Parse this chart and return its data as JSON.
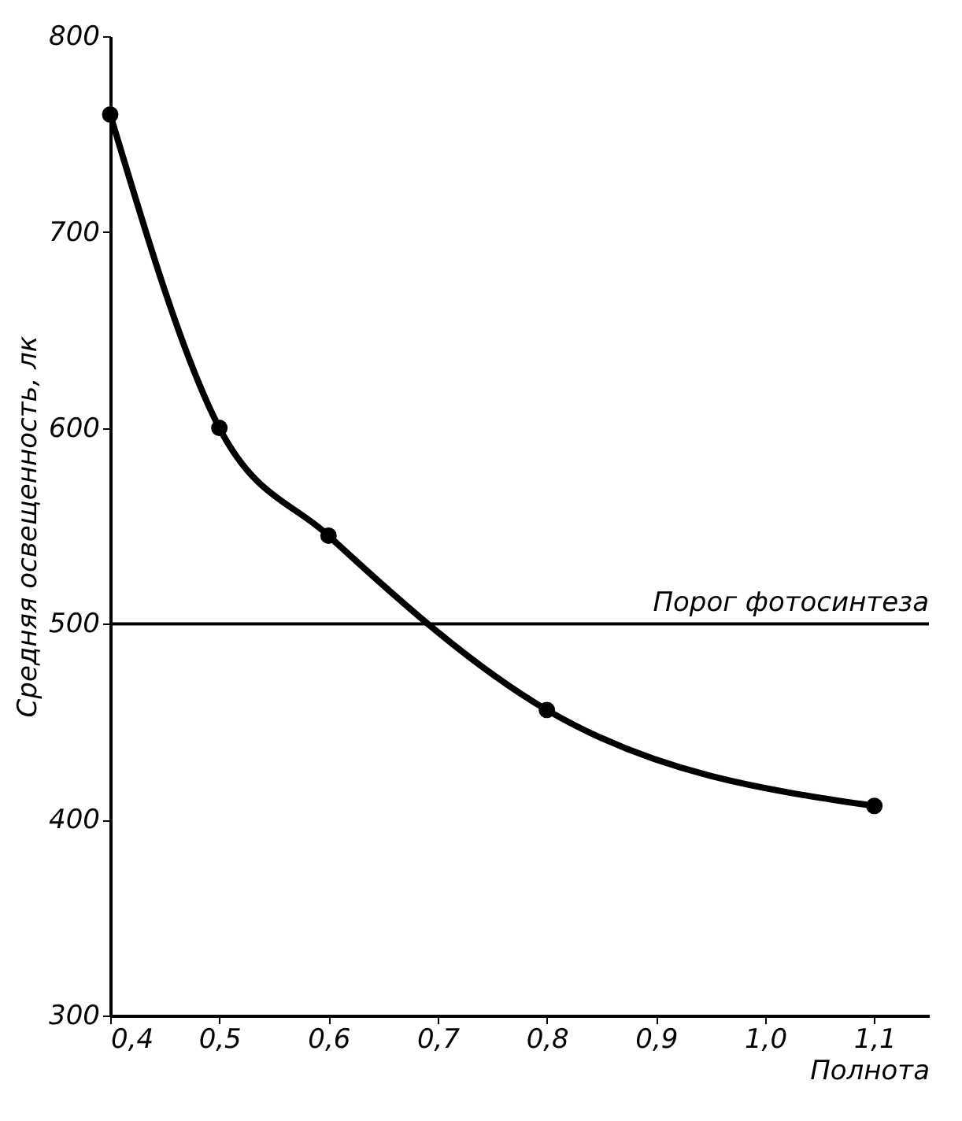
{
  "chart_data": {
    "type": "line",
    "xlabel": "Полнота",
    "ylabel": "Средняя освещенность, лк",
    "x": [
      0.4,
      0.5,
      0.6,
      0.8,
      1.1
    ],
    "series": [
      {
        "color": "#000000",
        "values": [
          760,
          600,
          545,
          456,
          407
        ]
      }
    ],
    "marker": "circle",
    "line_style": "solid",
    "grid": false,
    "xlim": [
      0.4,
      1.15
    ],
    "ylim": [
      300,
      800
    ],
    "xticks": [
      {
        "value": 0.4,
        "label": "0,4"
      },
      {
        "value": 0.5,
        "label": "0,5"
      },
      {
        "value": 0.6,
        "label": "0,6"
      },
      {
        "value": 0.7,
        "label": "0,7"
      },
      {
        "value": 0.8,
        "label": "0,8"
      },
      {
        "value": 0.9,
        "label": "0,9"
      },
      {
        "value": 1.0,
        "label": "1,0"
      },
      {
        "value": 1.1,
        "label": "1,1"
      }
    ],
    "yticks": [
      300,
      400,
      500,
      600,
      700,
      800
    ],
    "ref_lines": [
      {
        "axis": "y",
        "value": 500,
        "label": "Порог фотосинтеза",
        "color": "#000000"
      }
    ]
  }
}
